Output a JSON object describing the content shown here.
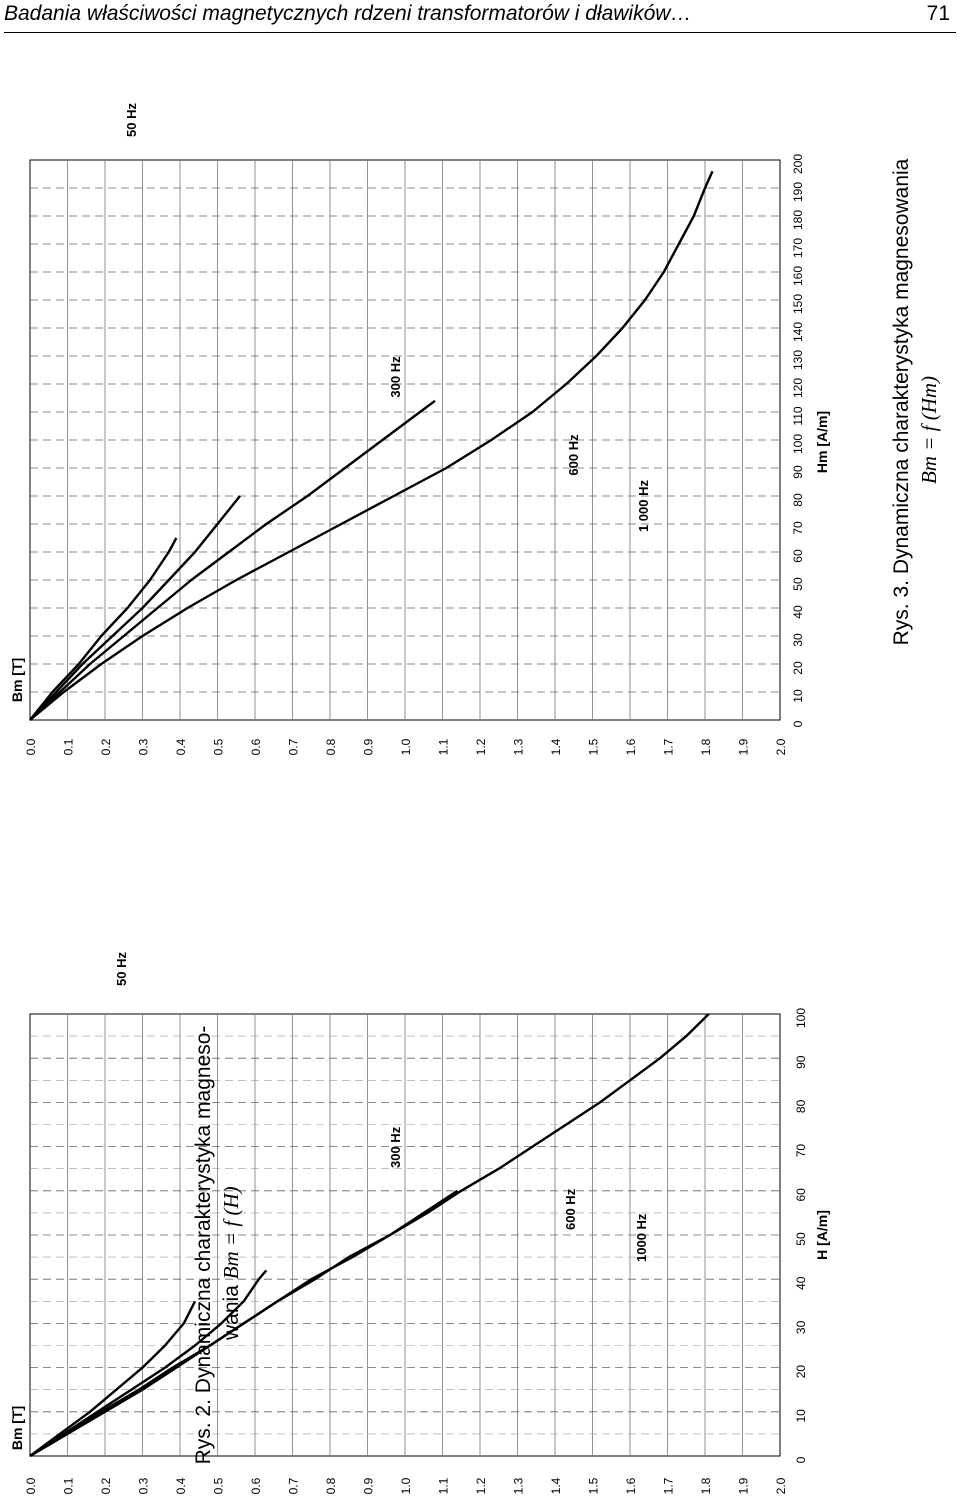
{
  "header": {
    "title": "Badania właściwości magnetycznych rdzeni transformatorów i dławików…",
    "page_number": "71"
  },
  "figure2": {
    "caption_line1": "Rys. 2. Dynamiczna charakterystyka magneso-",
    "caption_line2_text": "wania ",
    "caption_formula": "Bm = f (H)"
  },
  "figure3": {
    "caption_line1": "Rys. 3. Dynamiczna charakterystyka magnesowania",
    "caption_formula": "Bm = f (Hm)"
  },
  "chart_data": [
    {
      "type": "line",
      "title": "",
      "xlabel": "H  [A/m]",
      "ylabel": "Bm   [T]",
      "xlim": [
        0,
        100
      ],
      "ylim": [
        0.0,
        2.0
      ],
      "x_ticks": [
        "0",
        "10",
        "20",
        "30",
        "40",
        "50",
        "60",
        "70",
        "80",
        "90",
        "100"
      ],
      "y_ticks": [
        "0.0",
        "0.1",
        "0.2",
        "0.3",
        "0.4",
        "0.5",
        "0.6",
        "0.7",
        "0.8",
        "0.9",
        "1.0",
        "1.1",
        "1.2",
        "1.3",
        "1.4",
        "1.5",
        "1.6",
        "1.7",
        "1.8",
        "1.9",
        "2.0"
      ],
      "grid": true,
      "series": [
        {
          "name": "50 Hz",
          "x": [
            0,
            5,
            10,
            15,
            20,
            25,
            30,
            35,
            40,
            45,
            50,
            55,
            60,
            65,
            70,
            75,
            80,
            85,
            90,
            95,
            100
          ],
          "y": [
            0,
            0.1,
            0.2,
            0.3,
            0.39,
            0.48,
            0.57,
            0.66,
            0.75,
            0.86,
            0.96,
            1.06,
            1.15,
            1.25,
            1.34,
            1.43,
            1.52,
            1.6,
            1.68,
            1.75,
            1.81
          ]
        },
        {
          "name": "300 Hz",
          "x": [
            0,
            5,
            10,
            15,
            20,
            25,
            30,
            35,
            40,
            45,
            50,
            55,
            60
          ],
          "y": [
            0,
            0.1,
            0.19,
            0.29,
            0.38,
            0.48,
            0.57,
            0.66,
            0.76,
            0.85,
            0.96,
            1.05,
            1.14
          ]
        },
        {
          "name": "600 Hz",
          "x": [
            0,
            5,
            10,
            15,
            20,
            25,
            30,
            35,
            40,
            42
          ],
          "y": [
            0,
            0.09,
            0.18,
            0.27,
            0.36,
            0.44,
            0.51,
            0.57,
            0.61,
            0.63
          ]
        },
        {
          "name": "1000 Hz",
          "x": [
            0,
            5,
            10,
            15,
            20,
            25,
            30,
            35
          ],
          "y": [
            0,
            0.08,
            0.16,
            0.23,
            0.3,
            0.36,
            0.41,
            0.44
          ]
        }
      ]
    },
    {
      "type": "line",
      "title": "",
      "xlabel": "Hm  [A/m]",
      "ylabel": "Bm   [T]",
      "xlim": [
        0,
        200
      ],
      "ylim": [
        0.0,
        2.0
      ],
      "x_ticks": [
        "0",
        "10",
        "20",
        "30",
        "40",
        "50",
        "60",
        "70",
        "80",
        "90",
        "100",
        "110",
        "120",
        "130",
        "140",
        "150",
        "160",
        "170",
        "180",
        "190",
        "200"
      ],
      "y_ticks": [
        "0.0",
        "0.1",
        "0.2",
        "0.3",
        "0.4",
        "0.5",
        "0.6",
        "0.7",
        "0.8",
        "0.9",
        "1.0",
        "1.1",
        "1.2",
        "1.3",
        "1.4",
        "1.5",
        "1.6",
        "1.7",
        "1.8",
        "1.9",
        "2.0"
      ],
      "grid": true,
      "series": [
        {
          "name": "50 Hz",
          "x": [
            0,
            10,
            20,
            30,
            40,
            50,
            60,
            70,
            80,
            90,
            100,
            110,
            120,
            130,
            140,
            150,
            160,
            170,
            180,
            190,
            196
          ],
          "y": [
            0,
            0.09,
            0.19,
            0.3,
            0.42,
            0.55,
            0.69,
            0.83,
            0.97,
            1.11,
            1.23,
            1.34,
            1.43,
            1.51,
            1.58,
            1.64,
            1.69,
            1.73,
            1.77,
            1.8,
            1.82
          ]
        },
        {
          "name": "300 Hz",
          "x": [
            0,
            10,
            20,
            30,
            40,
            50,
            60,
            70,
            80,
            90,
            100,
            110,
            114
          ],
          "y": [
            0,
            0.08,
            0.16,
            0.25,
            0.34,
            0.43,
            0.53,
            0.63,
            0.74,
            0.84,
            0.94,
            1.04,
            1.08
          ]
        },
        {
          "name": "600 Hz",
          "x": [
            0,
            10,
            20,
            30,
            40,
            50,
            60,
            70,
            80
          ],
          "y": [
            0,
            0.07,
            0.14,
            0.22,
            0.3,
            0.37,
            0.44,
            0.5,
            0.56
          ]
        },
        {
          "name": "1 000 Hz",
          "x": [
            0,
            10,
            20,
            30,
            40,
            50,
            60,
            65
          ],
          "y": [
            0,
            0.06,
            0.13,
            0.19,
            0.26,
            0.32,
            0.37,
            0.39
          ]
        }
      ]
    }
  ]
}
